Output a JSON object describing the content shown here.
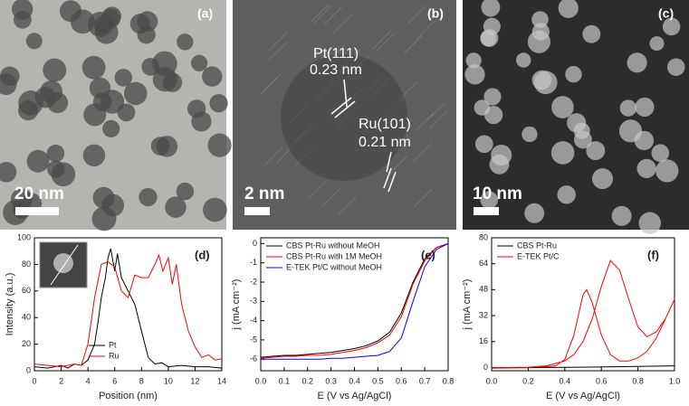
{
  "images": [
    {
      "label": "(a)",
      "scale_bar": "20 nm"
    },
    {
      "label": "(b)",
      "scale_bar": "2 nm",
      "annotations": [
        "Pt(111)",
        "0.23 nm",
        "Ru(101)",
        "0.21 nm"
      ]
    },
    {
      "label": "(c)",
      "scale_bar": "10 nm"
    }
  ],
  "chart_data": [
    {
      "type": "line",
      "title": "(d)",
      "x_label": "Position (nm)",
      "y_label": "Intensity (a.u.)",
      "xlim": [
        0,
        14
      ],
      "xticks": [
        0,
        2,
        4,
        6,
        8,
        10,
        12,
        14
      ],
      "ylim": [
        0,
        100
      ],
      "yticks": [
        0,
        20,
        40,
        60,
        80,
        100
      ],
      "legend": "lower center",
      "series": [
        {
          "name": "Pt",
          "color": "#000000",
          "x": [
            0,
            1,
            2,
            2.5,
            3,
            3.5,
            4,
            4.5,
            4.8,
            5,
            5.3,
            5.5,
            5.7,
            6,
            6.2,
            6.5,
            7,
            7.5,
            8,
            8.5,
            9,
            9.5,
            10,
            11,
            12,
            13,
            14
          ],
          "values": [
            3,
            2,
            4,
            2,
            5,
            4,
            8,
            20,
            40,
            55,
            70,
            85,
            92,
            75,
            88,
            70,
            60,
            50,
            30,
            10,
            5,
            6,
            3,
            4,
            3,
            3,
            2
          ]
        },
        {
          "name": "Ru",
          "color": "#ff0000",
          "x": [
            0,
            1,
            2,
            3,
            3.5,
            4,
            4.5,
            5,
            5.5,
            6,
            6.5,
            7,
            7.5,
            8,
            8.5,
            9,
            9.3,
            9.6,
            10,
            10.3,
            10.6,
            11,
            11.5,
            12,
            12.5,
            13,
            13.5,
            14
          ],
          "values": [
            5,
            4,
            3,
            5,
            4,
            20,
            55,
            80,
            82,
            78,
            60,
            55,
            72,
            70,
            70,
            80,
            87,
            75,
            85,
            65,
            80,
            50,
            30,
            18,
            10,
            12,
            8,
            9
          ]
        }
      ]
    },
    {
      "type": "line",
      "title": "(e)",
      "x_label": "E (V vs Ag/AgCl)",
      "y_label": "j (mA cm⁻²)",
      "xlim": [
        0,
        0.8
      ],
      "xticks": [
        {
          "value": 0,
          "label": "0.0"
        },
        0.1,
        0.2,
        0.3,
        0.4,
        0.5,
        0.6,
        0.7,
        0.8
      ],
      "ylim": [
        -6.6,
        0.3
      ],
      "yticks": [
        -6,
        -5,
        -4,
        -3,
        -2,
        -1,
        0
      ],
      "legend": "upper left",
      "series": [
        {
          "name": "CBS Pt-Ru without MeOH",
          "color": "#000000",
          "x": [
            0,
            0.05,
            0.1,
            0.15,
            0.2,
            0.25,
            0.3,
            0.35,
            0.4,
            0.45,
            0.5,
            0.55,
            0.6,
            0.65,
            0.7,
            0.75,
            0.8
          ],
          "values": [
            -5.9,
            -5.85,
            -5.8,
            -5.8,
            -5.75,
            -5.7,
            -5.65,
            -5.55,
            -5.45,
            -5.3,
            -5.05,
            -4.6,
            -3.6,
            -2.0,
            -0.8,
            -0.2,
            0
          ]
        },
        {
          "name": "CBS Pt-Ru with 1M MeOH",
          "color": "#ff0000",
          "x": [
            0,
            0.05,
            0.1,
            0.15,
            0.2,
            0.25,
            0.3,
            0.35,
            0.4,
            0.45,
            0.5,
            0.55,
            0.6,
            0.65,
            0.7,
            0.75,
            0.8
          ],
          "values": [
            -5.95,
            -5.9,
            -5.85,
            -5.85,
            -5.8,
            -5.8,
            -5.75,
            -5.65,
            -5.55,
            -5.4,
            -5.15,
            -4.75,
            -3.8,
            -2.1,
            -0.9,
            -0.2,
            0
          ]
        },
        {
          "name": "E-TEK Pt/C without MeOH",
          "color": "#0000ff",
          "x": [
            0,
            0.05,
            0.1,
            0.15,
            0.2,
            0.25,
            0.3,
            0.35,
            0.4,
            0.45,
            0.5,
            0.55,
            0.6,
            0.65,
            0.7,
            0.75,
            0.8
          ],
          "values": [
            -6.0,
            -6.0,
            -6.0,
            -6.0,
            -6.0,
            -6.0,
            -5.95,
            -5.95,
            -5.9,
            -5.85,
            -5.8,
            -5.6,
            -4.9,
            -3.0,
            -1.2,
            -0.3,
            0
          ]
        }
      ]
    },
    {
      "type": "line",
      "title": "(f)",
      "x_label": "E (V vs Ag/AgCl)",
      "y_label": "j (mA cm⁻²)",
      "xlim": [
        0,
        1
      ],
      "xticks": [
        {
          "value": 0,
          "label": "0.0"
        },
        0.2,
        0.4,
        0.6,
        0.8,
        {
          "value": 1,
          "label": "1.0"
        }
      ],
      "ylim": [
        -2,
        80
      ],
      "yticks": [
        0,
        16,
        32,
        48,
        64,
        80
      ],
      "legend": "upper left",
      "series": [
        {
          "name": "CBS Pt-Ru",
          "color": "#000000",
          "x": [
            0,
            0.5,
            1
          ],
          "values": [
            -0.3,
            0.2,
            1
          ]
        },
        {
          "name": "E-TEK Pt/C",
          "color": "#ff0000",
          "x": [
            0,
            0.1,
            0.2,
            0.3,
            0.4,
            0.45,
            0.5,
            0.55,
            0.6,
            0.65,
            0.7,
            0.75,
            0.8,
            0.85,
            0.9,
            0.95,
            1,
            0.95,
            0.9,
            0.85,
            0.8,
            0.75,
            0.7,
            0.65,
            0.6,
            0.55,
            0.52,
            0.5,
            0.45,
            0.4,
            0.35,
            0.3,
            0.2,
            0.1,
            0
          ],
          "values": [
            0,
            0,
            0.2,
            1,
            4,
            8,
            16,
            30,
            50,
            66,
            60,
            42,
            25,
            19,
            22,
            30,
            42,
            30,
            18,
            10,
            6,
            4,
            4,
            8,
            20,
            40,
            48,
            45,
            20,
            5,
            1,
            0.5,
            0,
            0,
            0
          ]
        }
      ]
    }
  ]
}
